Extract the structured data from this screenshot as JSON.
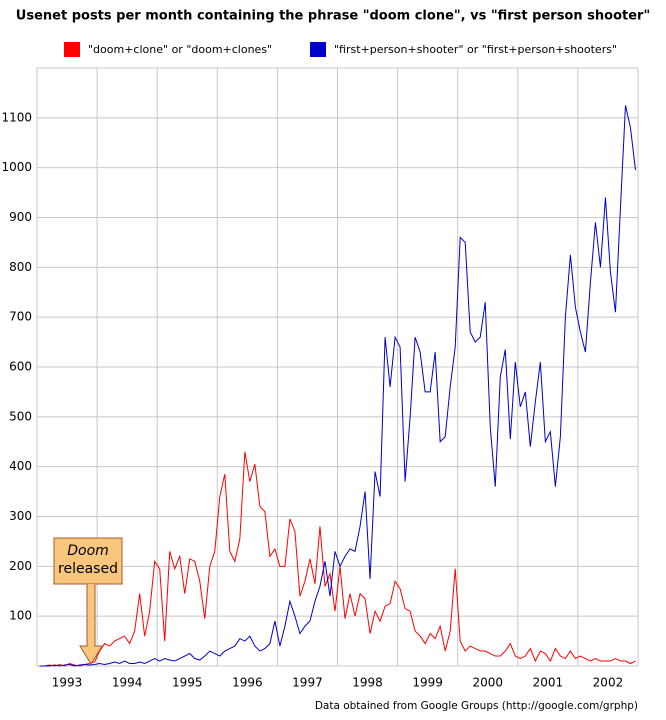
{
  "chart_data": {
    "type": "line",
    "title": "Usenet posts per month containing the phrase \"doom clone\", vs \"first person shooter\"",
    "annotations": [
      "Doom",
      "released"
    ],
    "source": "Data obtained from Google Groups (http://google.com/grphp)",
    "categories": [
      null,
      null,
      null,
      null,
      null,
      null,
      "1993",
      null,
      null,
      null,
      null,
      null,
      null,
      null,
      null,
      null,
      null,
      null,
      "1994",
      null,
      null,
      null,
      null,
      null,
      null,
      null,
      null,
      null,
      null,
      null,
      "1995",
      null,
      null,
      null,
      null,
      null,
      null,
      null,
      null,
      null,
      null,
      null,
      "1996",
      null,
      null,
      null,
      null,
      null,
      null,
      null,
      null,
      null,
      null,
      null,
      "1997",
      null,
      null,
      null,
      null,
      null,
      null,
      null,
      null,
      null,
      null,
      null,
      "1998",
      null,
      null,
      null,
      null,
      null,
      null,
      null,
      null,
      null,
      null,
      null,
      "1999",
      null,
      null,
      null,
      null,
      null,
      null,
      null,
      null,
      null,
      null,
      null,
      "2000",
      null,
      null,
      null,
      null,
      null,
      null,
      null,
      null,
      null,
      null,
      null,
      "2001",
      null,
      null,
      null,
      null,
      null,
      null,
      null,
      null,
      null,
      null,
      null,
      "2002",
      null,
      null,
      null,
      null,
      null
    ],
    "series": [
      {
        "name": "\"doom+clone\" or \"doom+clones\"",
        "color": "#ff0000",
        "values": [
          0,
          0,
          2,
          0,
          3,
          0,
          5,
          2,
          0,
          3,
          5,
          8,
          30,
          45,
          40,
          50,
          55,
          60,
          45,
          70,
          145,
          60,
          110,
          210,
          195,
          50,
          230,
          195,
          220,
          145,
          215,
          210,
          170,
          95,
          200,
          230,
          340,
          385,
          230,
          210,
          255,
          430,
          370,
          405,
          320,
          310,
          220,
          235,
          200,
          200,
          295,
          270,
          140,
          170,
          215,
          165,
          280,
          160,
          185,
          110,
          200,
          95,
          145,
          100,
          145,
          135,
          65,
          110,
          90,
          120,
          125,
          170,
          155,
          115,
          110,
          70,
          60,
          45,
          65,
          55,
          80,
          30,
          70,
          195,
          50,
          30,
          40,
          35,
          30,
          30,
          25,
          20,
          20,
          30,
          45,
          20,
          15,
          20,
          35,
          10,
          30,
          25,
          10,
          35,
          20,
          15,
          30,
          15,
          20,
          15,
          10,
          15,
          10,
          10,
          10,
          15,
          10,
          10,
          5,
          10
        ]
      },
      {
        "name": "\"first+person+shooter\" or \"first+person+shooters\"",
        "color": "#0000cc",
        "values": [
          0,
          0,
          0,
          2,
          0,
          2,
          3,
          0,
          2,
          3,
          2,
          3,
          5,
          3,
          5,
          8,
          5,
          10,
          5,
          5,
          8,
          5,
          10,
          15,
          10,
          15,
          12,
          10,
          15,
          20,
          25,
          15,
          12,
          20,
          30,
          25,
          20,
          30,
          35,
          40,
          55,
          50,
          60,
          40,
          30,
          35,
          45,
          90,
          40,
          80,
          130,
          100,
          65,
          80,
          90,
          130,
          160,
          210,
          140,
          230,
          200,
          220,
          235,
          230,
          280,
          350,
          175,
          390,
          340,
          660,
          560,
          660,
          640,
          370,
          500,
          660,
          630,
          550,
          550,
          630,
          450,
          460,
          560,
          640,
          860,
          850,
          670,
          650,
          660,
          730,
          480,
          360,
          580,
          635,
          455,
          610,
          520,
          550,
          440,
          530,
          610,
          450,
          470,
          360,
          460,
          700,
          825,
          720,
          670,
          630,
          770,
          890,
          800,
          940,
          790,
          710,
          920,
          1125,
          1080,
          995
        ]
      }
    ],
    "ylim": [
      0,
      1200
    ],
    "yticks": [
      100,
      200,
      300,
      400,
      500,
      600,
      700,
      800,
      900,
      1000,
      1100
    ],
    "grid": true,
    "legend": "top"
  }
}
